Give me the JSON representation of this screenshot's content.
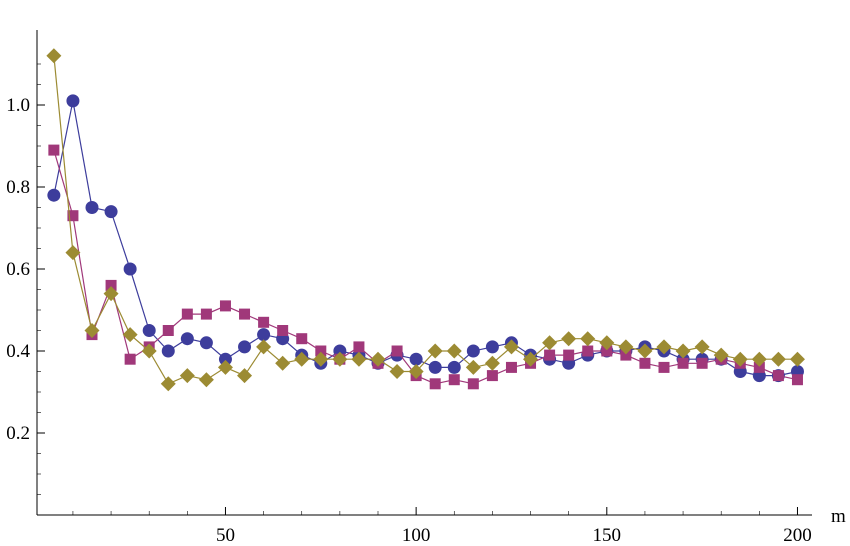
{
  "chart_data": {
    "type": "line",
    "xlabel": "m",
    "ylabel": "",
    "xlim": [
      0,
      205
    ],
    "ylim": [
      0,
      1.15
    ],
    "x_ticks": [
      "50",
      "100",
      "150",
      "200"
    ],
    "y_ticks": [
      "0.2",
      "0.4",
      "0.6",
      "0.8",
      "1.0"
    ],
    "x": [
      5,
      10,
      15,
      20,
      25,
      30,
      35,
      40,
      45,
      50,
      55,
      60,
      65,
      70,
      75,
      80,
      85,
      90,
      95,
      100,
      105,
      110,
      115,
      120,
      125,
      130,
      135,
      140,
      145,
      150,
      155,
      160,
      165,
      170,
      175,
      180,
      185,
      190,
      195,
      200
    ],
    "series": [
      {
        "marker": "circle",
        "color": "#3d3d9c",
        "values": [
          0.78,
          1.01,
          0.75,
          0.74,
          0.6,
          0.45,
          0.4,
          0.43,
          0.42,
          0.38,
          0.41,
          0.44,
          0.43,
          0.39,
          0.37,
          0.4,
          0.39,
          0.37,
          0.39,
          0.38,
          0.36,
          0.36,
          0.4,
          0.41,
          0.42,
          0.39,
          0.38,
          0.37,
          0.39,
          0.4,
          0.4,
          0.41,
          0.4,
          0.38,
          0.38,
          0.38,
          0.35,
          0.34,
          0.34,
          0.35
        ]
      },
      {
        "marker": "square",
        "color": "#a0387a",
        "values": [
          0.89,
          0.73,
          0.44,
          0.56,
          0.38,
          0.41,
          0.45,
          0.49,
          0.49,
          0.51,
          0.49,
          0.47,
          0.45,
          0.43,
          0.4,
          0.38,
          0.41,
          0.37,
          0.4,
          0.34,
          0.32,
          0.33,
          0.32,
          0.34,
          0.36,
          0.37,
          0.39,
          0.39,
          0.4,
          0.4,
          0.39,
          0.37,
          0.36,
          0.37,
          0.37,
          0.38,
          0.37,
          0.36,
          0.34,
          0.33
        ]
      },
      {
        "marker": "diamond",
        "color": "#9c8b33",
        "values": [
          1.12,
          0.64,
          0.45,
          0.54,
          0.44,
          0.4,
          0.32,
          0.34,
          0.33,
          0.36,
          0.34,
          0.41,
          0.37,
          0.38,
          0.38,
          0.38,
          0.38,
          0.38,
          0.35,
          0.35,
          0.4,
          0.4,
          0.36,
          0.37,
          0.41,
          0.38,
          0.42,
          0.43,
          0.43,
          0.42,
          0.41,
          0.4,
          0.41,
          0.4,
          0.41,
          0.39,
          0.38,
          0.38,
          0.38,
          0.38
        ]
      }
    ]
  }
}
